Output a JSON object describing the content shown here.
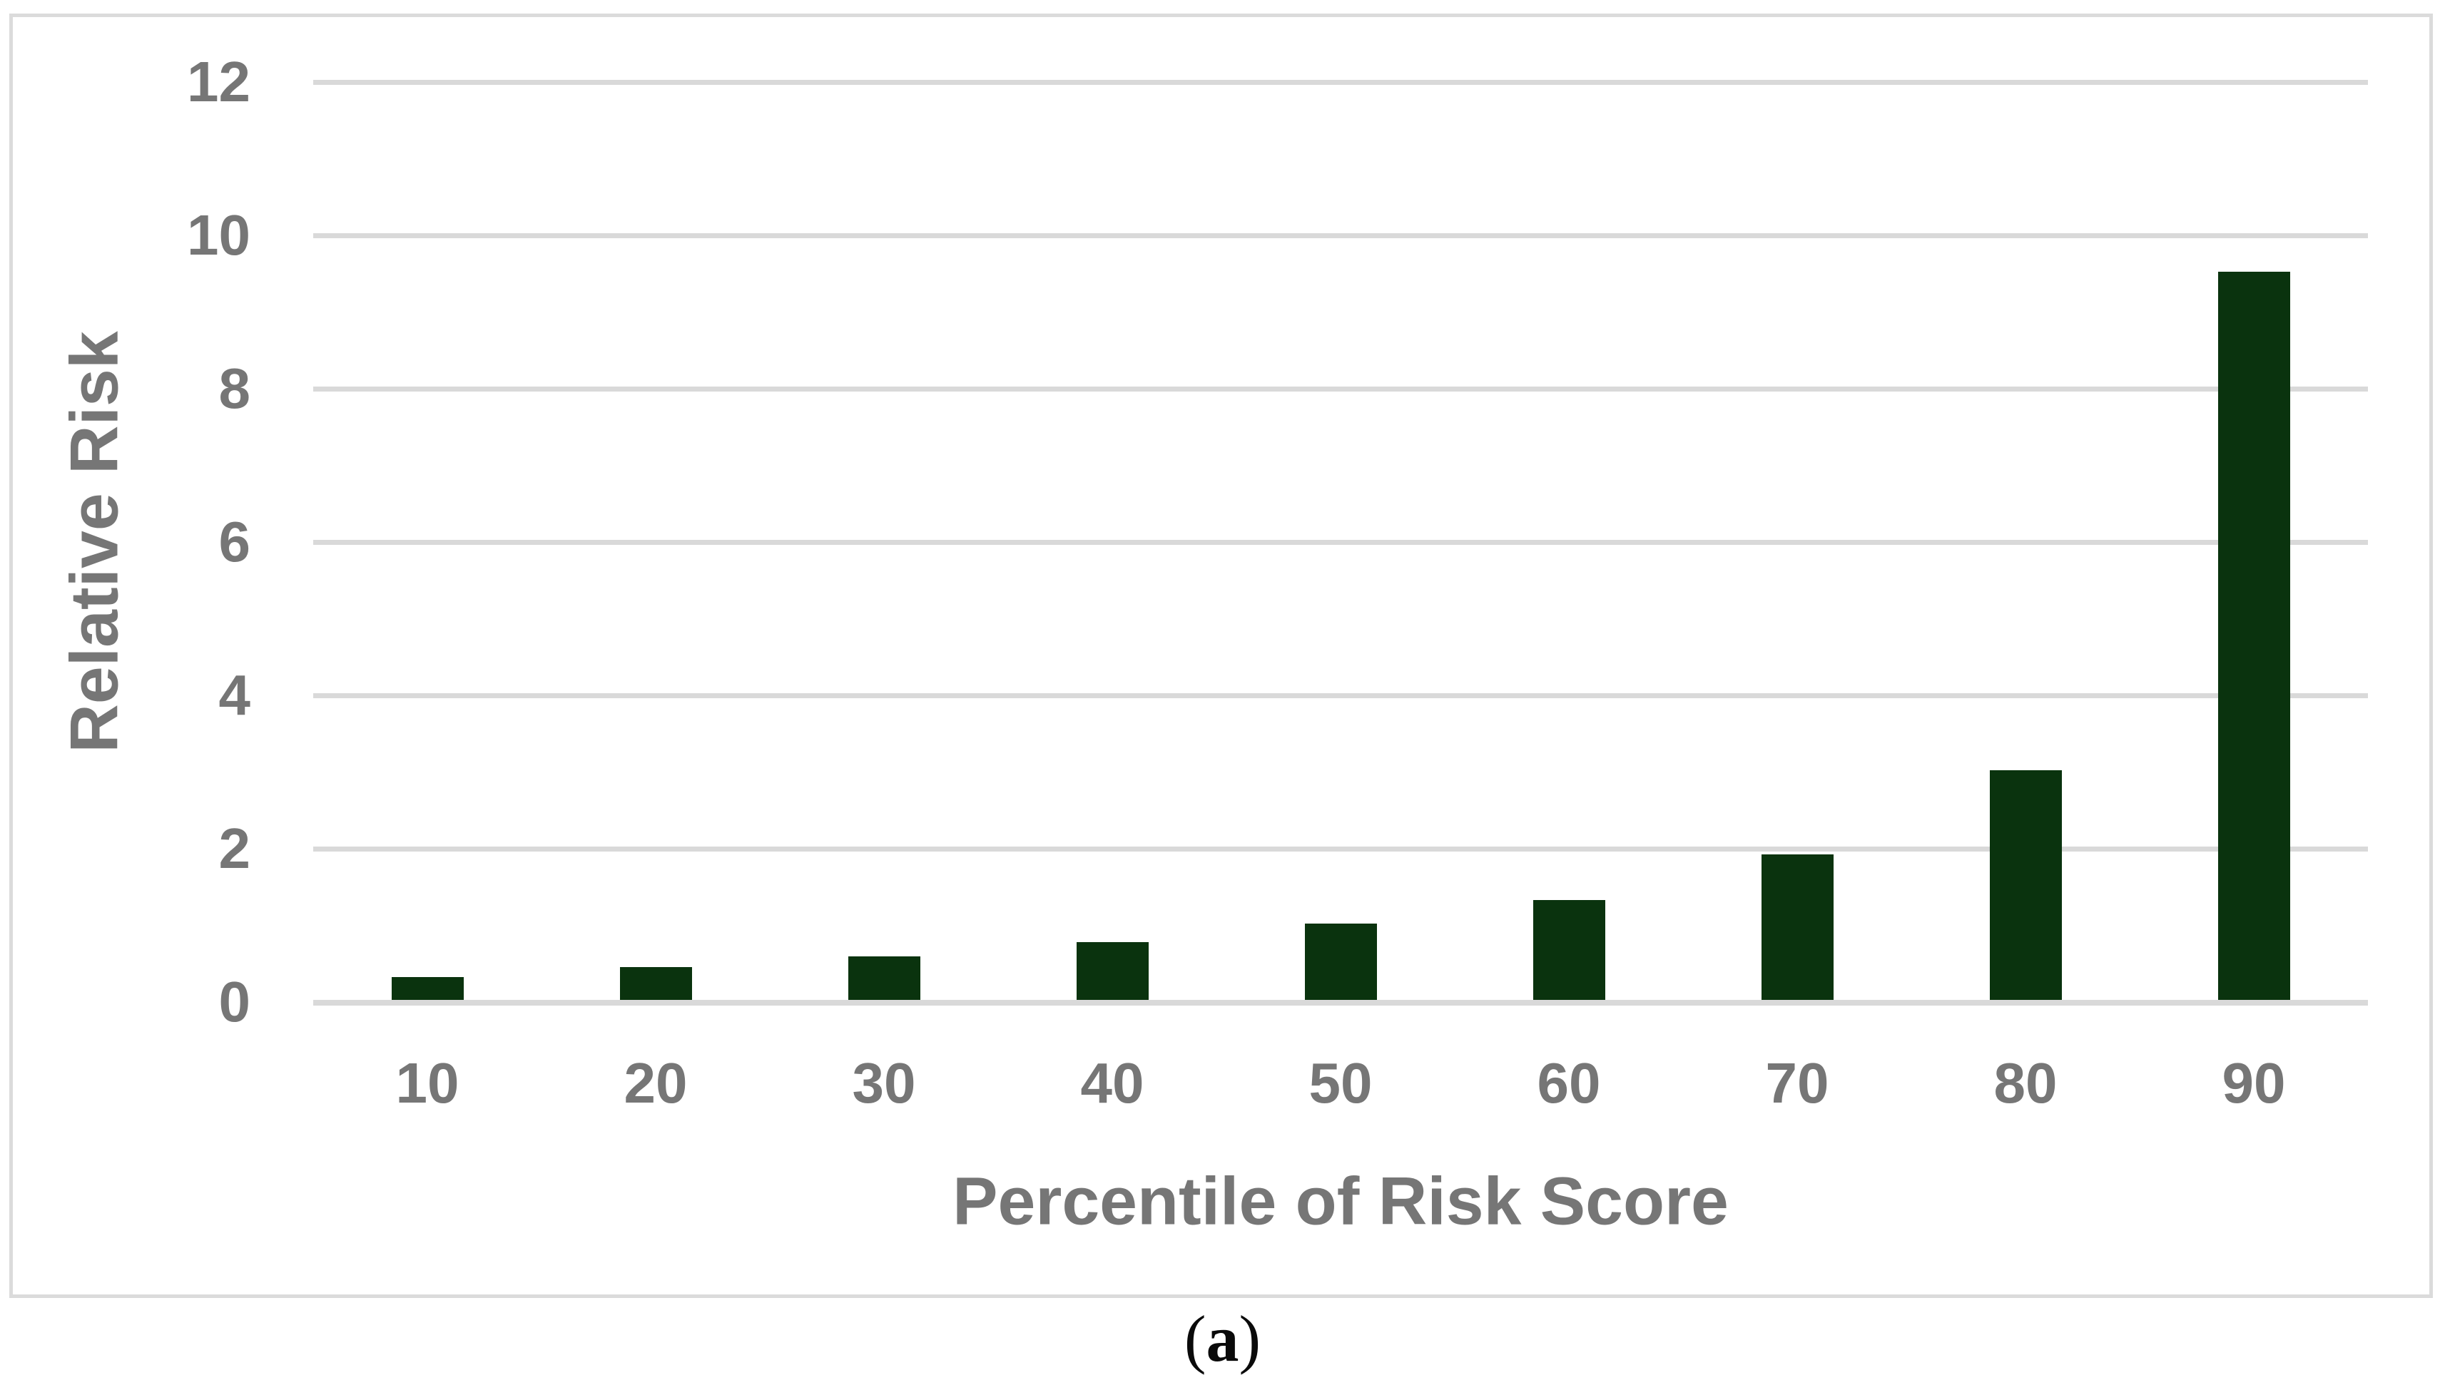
{
  "figure": {
    "caption": {
      "open": "(",
      "letter": "a",
      "close": ")"
    }
  },
  "chart_data": {
    "type": "bar",
    "title": "",
    "categories": [
      "10",
      "20",
      "30",
      "40",
      "50",
      "60",
      "70",
      "80",
      "90"
    ],
    "values": [
      0.3,
      0.43,
      0.57,
      0.75,
      1.0,
      1.3,
      1.9,
      3.0,
      9.5
    ],
    "xlabel": "Percentile of Risk Score",
    "ylabel": "Relative Risk",
    "ylim": [
      0,
      12
    ],
    "yticks": [
      0,
      2,
      4,
      6,
      8,
      10,
      12
    ],
    "grid": true,
    "legend": false,
    "bar_color": "#0A330E",
    "gridline_color": "#D9D9D9",
    "axis_line_color": "#D9D9D9",
    "label_color": "#767676",
    "border_color": "#DBDBDB"
  }
}
